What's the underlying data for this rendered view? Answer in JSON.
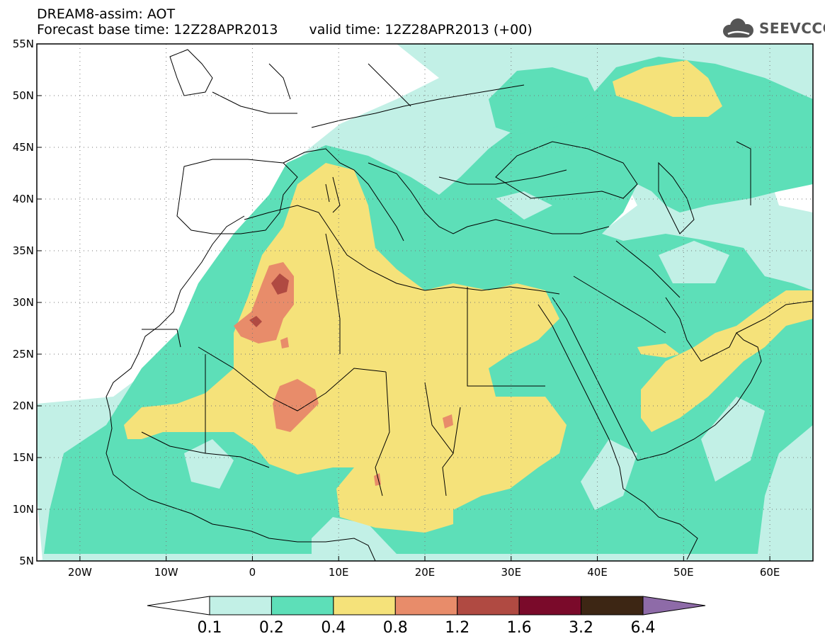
{
  "header": {
    "line1": "DREAM8-assim: AOT",
    "base_time": "Forecast base time: 12Z28APR2013",
    "valid_time": "valid time: 12Z28APR2013 (+00)"
  },
  "logo": {
    "text": "SEEVCCC",
    "icon": "cloud-icon"
  },
  "map": {
    "lon_range": [
      -25,
      65
    ],
    "lat_range": [
      5,
      55
    ],
    "lat_ticks": [
      {
        "value": 55,
        "label": "55N"
      },
      {
        "value": 50,
        "label": "50N"
      },
      {
        "value": 45,
        "label": "45N"
      },
      {
        "value": 40,
        "label": "40N"
      },
      {
        "value": 35,
        "label": "35N"
      },
      {
        "value": 30,
        "label": "30N"
      },
      {
        "value": 25,
        "label": "25N"
      },
      {
        "value": 20,
        "label": "20N"
      },
      {
        "value": 15,
        "label": "15N"
      },
      {
        "value": 10,
        "label": "10N"
      },
      {
        "value": 5,
        "label": "5N"
      }
    ],
    "lon_ticks": [
      {
        "value": -20,
        "label": "20W"
      },
      {
        "value": -10,
        "label": "10W"
      },
      {
        "value": 0,
        "label": "0"
      },
      {
        "value": 10,
        "label": "10E"
      },
      {
        "value": 20,
        "label": "20E"
      },
      {
        "value": 30,
        "label": "30E"
      },
      {
        "value": 40,
        "label": "40E"
      },
      {
        "value": 50,
        "label": "50E"
      },
      {
        "value": 60,
        "label": "60E"
      }
    ],
    "grid": "dotted"
  },
  "colorbar": {
    "labels": [
      "0.1",
      "0.2",
      "0.4",
      "0.8",
      "1.2",
      "1.6",
      "3.2",
      "6.4"
    ],
    "colors": [
      "#ffffff",
      "#c2f0e6",
      "#5ddfb8",
      "#f5e27a",
      "#e88c6a",
      "#b04a42",
      "#7a0a2a",
      "#3d2614",
      "#8e6ba8"
    ]
  }
}
